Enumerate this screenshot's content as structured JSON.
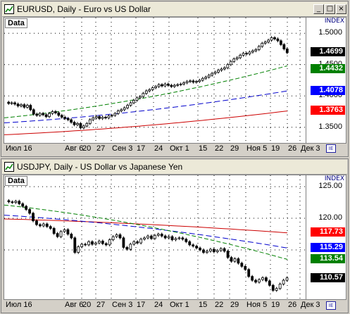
{
  "panels": [
    {
      "title": "EURUSD, Daily - Euro vs US Dollar",
      "data_label": "Data",
      "index_label": "INDEX",
      "y_min": 1.325,
      "y_max": 1.525,
      "ticks": [
        "1.5000",
        "1.4500",
        "1.4000",
        "1.3500"
      ],
      "tick_values": [
        1.5,
        1.45,
        1.4,
        1.35
      ],
      "tags": [
        {
          "text": "1.4699",
          "value": 1.4699,
          "bg": "#000000"
        },
        {
          "text": "1.4432",
          "value": 1.4432,
          "bg": "#008000"
        },
        {
          "text": "1.4078",
          "value": 1.4078,
          "bg": "#0000ff"
        },
        {
          "text": "1.3763",
          "value": 1.3763,
          "bg": "#ff0000"
        }
      ],
      "dates": [
        "Июл 16",
        "Авг 6",
        "20",
        "27",
        "Сен 3",
        "17",
        "24",
        "Окт 1",
        "15",
        "22",
        "29",
        "Ноя 5",
        "19",
        "26",
        "Дек 3"
      ],
      "ma_green": [
        1.365,
        1.448
      ],
      "ma_blue": [
        1.357,
        1.408
      ],
      "ma_red": [
        1.338,
        1.376
      ],
      "closes": [
        1.388,
        1.389,
        1.387,
        1.384,
        1.386,
        1.382,
        1.385,
        1.378,
        1.371,
        1.369,
        1.372,
        1.37,
        1.367,
        1.372,
        1.375,
        1.373,
        1.369,
        1.366,
        1.364,
        1.362,
        1.358,
        1.354,
        1.356,
        1.349,
        1.352,
        1.356,
        1.362,
        1.365,
        1.367,
        1.364,
        1.366,
        1.365,
        1.368,
        1.369,
        1.372,
        1.376,
        1.378,
        1.381,
        1.385,
        1.389,
        1.393,
        1.397,
        1.399,
        1.404,
        1.408,
        1.41,
        1.413,
        1.415,
        1.418,
        1.416,
        1.419,
        1.417,
        1.415,
        1.417,
        1.418,
        1.419,
        1.421,
        1.423,
        1.424,
        1.422,
        1.423,
        1.425,
        1.428,
        1.43,
        1.433,
        1.436,
        1.438,
        1.441,
        1.443,
        1.445,
        1.45,
        1.455,
        1.459,
        1.461,
        1.465,
        1.468,
        1.467,
        1.47,
        1.472,
        1.474,
        1.479,
        1.484,
        1.486,
        1.489,
        1.493,
        1.491,
        1.488,
        1.482,
        1.475,
        1.469
      ]
    },
    {
      "title": "USDJPY, Daily - US Dollar vs Japanese Yen",
      "data_label": "Data",
      "index_label": "INDEX",
      "y_min": 107.2,
      "y_max": 126.8,
      "ticks": [
        "125.00",
        "120.00",
        "115.00"
      ],
      "tick_values": [
        125,
        120,
        115
      ],
      "tags": [
        {
          "text": "117.73",
          "value": 117.73,
          "bg": "#ff0000"
        },
        {
          "text": "115.29",
          "value": 115.29,
          "bg": "#0000ff"
        },
        {
          "text": "113.54",
          "value": 113.54,
          "bg": "#008000"
        },
        {
          "text": "110.57",
          "value": 110.57,
          "bg": "#000000"
        }
      ],
      "dates": [
        "Июл 16",
        "Авг 6",
        "20",
        "27",
        "Сен 3",
        "17",
        "24",
        "Окт 1",
        "15",
        "22",
        "29",
        "Ноя 5",
        "19",
        "26",
        "Дек 3"
      ],
      "ma_green": [
        122.1,
        113.5
      ],
      "ma_blue": [
        120.5,
        115.3
      ],
      "ma_red": [
        119.9,
        117.7
      ],
      "closes": [
        122.6,
        122.5,
        122.7,
        122.3,
        121.9,
        121.4,
        120.8,
        119.6,
        119.0,
        118.8,
        119.1,
        118.7,
        118.4,
        117.6,
        117.1,
        117.9,
        118.2,
        117.5,
        116.9,
        114.6,
        115.5,
        115.9,
        115.8,
        116.3,
        115.9,
        116.1,
        116.4,
        116.0,
        115.8,
        116.6,
        117.1,
        117.4,
        116.9,
        115.4,
        115.1,
        115.9,
        116.3,
        116.1,
        116.7,
        116.9,
        117.2,
        116.8,
        117.3,
        117.5,
        117.2,
        116.9,
        117.1,
        116.6,
        116.8,
        116.9,
        116.7,
        116.3,
        115.8,
        115.6,
        115.3,
        115.0,
        114.6,
        114.8,
        115.1,
        114.7,
        114.9,
        115.2,
        114.8,
        113.8,
        113.2,
        113.6,
        112.9,
        112.4,
        111.9,
        110.8,
        110.2,
        109.9,
        110.3,
        110.6,
        110.1,
        109.4,
        108.6,
        108.9,
        109.6,
        110.2,
        110.57
      ]
    }
  ]
}
